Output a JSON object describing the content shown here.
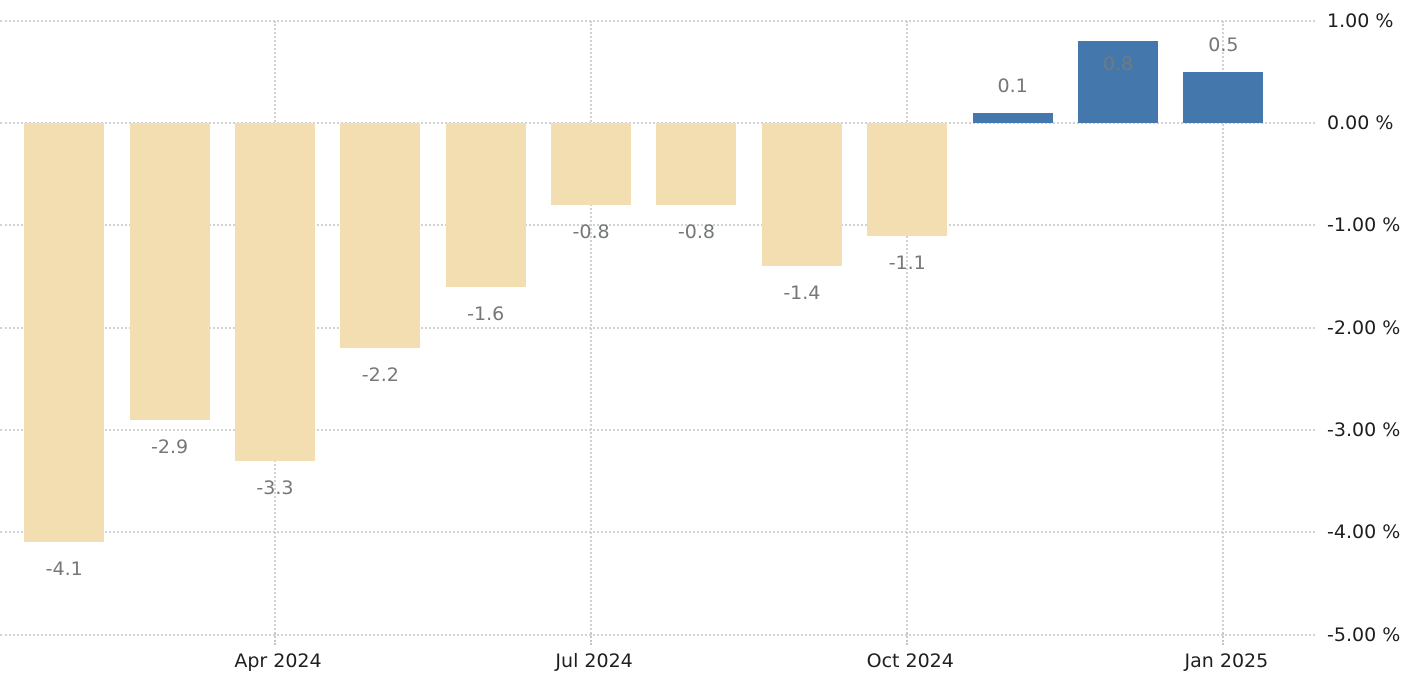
{
  "chart_data": {
    "type": "bar",
    "title": "",
    "xlabel": "",
    "ylabel": "",
    "ylim": [
      -5,
      1
    ],
    "grid": "dotted",
    "values": [
      -4.1,
      -2.9,
      -3.3,
      -2.2,
      -1.6,
      -0.8,
      -0.8,
      -1.4,
      -1.1,
      0.1,
      0.8,
      0.5
    ],
    "bar_labels": [
      "-4.1",
      "-2.9",
      "-3.3",
      "-2.2",
      "-1.6",
      "-0.8",
      "-0.8",
      "-1.4",
      "-1.1",
      "0.1",
      "0.8",
      "0.5"
    ],
    "x_ticks": [
      {
        "slot": 2,
        "label": "Apr 2024"
      },
      {
        "slot": 5,
        "label": "Jul 2024"
      },
      {
        "slot": 8,
        "label": "Oct 2024"
      },
      {
        "slot": 11,
        "label": "Jan 2025"
      }
    ],
    "y_ticks": [
      {
        "value": 1,
        "label": "1.00 %"
      },
      {
        "value": 0,
        "label": "0.00 %"
      },
      {
        "value": -1,
        "label": "-1.00 %"
      },
      {
        "value": -2,
        "label": "-2.00 %"
      },
      {
        "value": -3,
        "label": "-3.00 %"
      },
      {
        "value": -4,
        "label": "-4.00 %"
      },
      {
        "value": -5,
        "label": "-5.00 %"
      }
    ],
    "colors": {
      "positive_bar": "#4478ad",
      "negative_bar": "#f3deb2",
      "data_label": "#75787b",
      "axis_text": "#1e1e1e",
      "gridline": "#d2d2d2"
    }
  }
}
